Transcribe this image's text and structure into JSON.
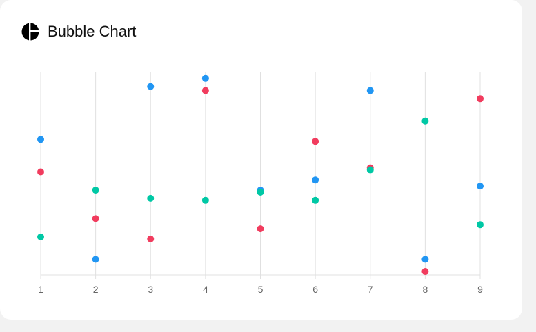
{
  "header": {
    "title": "Bubble Chart",
    "icon": "pie-chart-icon"
  },
  "colors": {
    "blue": "#2196f3",
    "red": "#f13c5e",
    "teal": "#00c8a5",
    "grid": "#e0e0e0",
    "tick_text": "#666666"
  },
  "chart_data": {
    "type": "scatter",
    "title": "",
    "xlabel": "",
    "ylabel": "",
    "x_ticks": [
      "1",
      "2",
      "3",
      "4",
      "5",
      "6",
      "7",
      "8",
      "9"
    ],
    "xlim": [
      1,
      9
    ],
    "ylim": [
      0,
      100
    ],
    "grid": "vertical lines only",
    "legend": "none",
    "series": [
      {
        "color": "#2196f3",
        "points": [
          {
            "x": 1,
            "y": 66
          },
          {
            "x": 2,
            "y": 7
          },
          {
            "x": 3,
            "y": 92
          },
          {
            "x": 4,
            "y": 96
          },
          {
            "x": 5,
            "y": 41
          },
          {
            "x": 6,
            "y": 46
          },
          {
            "x": 7,
            "y": 90
          },
          {
            "x": 8,
            "y": 7
          },
          {
            "x": 9,
            "y": 43
          }
        ]
      },
      {
        "color": "#f13c5e",
        "points": [
          {
            "x": 1,
            "y": 50
          },
          {
            "x": 2,
            "y": 27
          },
          {
            "x": 3,
            "y": 17
          },
          {
            "x": 4,
            "y": 90
          },
          {
            "x": 5,
            "y": 22
          },
          {
            "x": 6,
            "y": 65
          },
          {
            "x": 7,
            "y": 52
          },
          {
            "x": 8,
            "y": 1
          },
          {
            "x": 9,
            "y": 86
          }
        ]
      },
      {
        "color": "#00c8a5",
        "points": [
          {
            "x": 1,
            "y": 18
          },
          {
            "x": 2,
            "y": 41
          },
          {
            "x": 3,
            "y": 37
          },
          {
            "x": 4,
            "y": 36
          },
          {
            "x": 5,
            "y": 40
          },
          {
            "x": 6,
            "y": 36
          },
          {
            "x": 7,
            "y": 51
          },
          {
            "x": 8,
            "y": 75
          },
          {
            "x": 9,
            "y": 24
          }
        ]
      }
    ]
  }
}
